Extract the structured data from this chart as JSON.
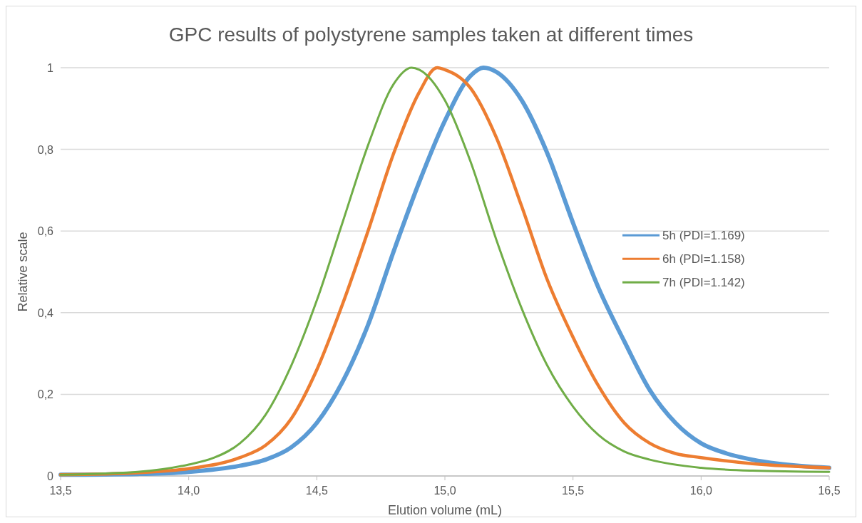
{
  "chart_data": {
    "type": "line",
    "title": "GPC results of polystyrene samples taken at different times",
    "xlabel": "Elution volume (mL)",
    "ylabel": "Relative scale",
    "xlim": [
      13.5,
      16.5
    ],
    "xticks": [
      {
        "value": 13.5,
        "label": "13,5"
      },
      {
        "value": 14,
        "label": "14,0"
      },
      {
        "value": 14.5,
        "label": "14,5"
      },
      {
        "value": 15,
        "label": "15,0"
      },
      {
        "value": 15.5,
        "label": "15,5"
      },
      {
        "value": 16,
        "label": "16,0"
      },
      {
        "value": 16.5,
        "label": "16,5"
      }
    ],
    "ylim": [
      0,
      1
    ],
    "yticks": [
      0,
      {
        "value": 0.2,
        "label": "0,2"
      },
      {
        "value": 0.4,
        "label": "0,4"
      },
      {
        "value": 0.6,
        "label": "0,6"
      },
      {
        "value": 0.8,
        "label": "0,8"
      },
      1
    ],
    "grid": "y",
    "legend": "right",
    "marker": "none",
    "line_style": "solid",
    "series": [
      {
        "name": "5h (PDI=1.169)",
        "color": "#5b9bd5",
        "x": [
          13.5,
          13.8,
          14.0,
          14.2,
          14.3,
          14.4,
          14.5,
          14.6,
          14.7,
          14.8,
          14.9,
          15.0,
          15.1,
          15.15,
          15.2,
          15.3,
          15.4,
          15.5,
          15.6,
          15.7,
          15.8,
          15.9,
          16.0,
          16.1,
          16.2,
          16.3,
          16.5
        ],
        "values": [
          0.003,
          0.005,
          0.01,
          0.025,
          0.04,
          0.07,
          0.13,
          0.23,
          0.37,
          0.55,
          0.72,
          0.87,
          0.98,
          1.0,
          0.99,
          0.92,
          0.79,
          0.62,
          0.46,
          0.33,
          0.21,
          0.13,
          0.08,
          0.055,
          0.04,
          0.03,
          0.02
        ]
      },
      {
        "name": "6h (PDI=1.158)",
        "color": "#ed7d31",
        "x": [
          13.5,
          13.8,
          14.0,
          14.2,
          14.3,
          14.4,
          14.5,
          14.6,
          14.7,
          14.8,
          14.9,
          14.97,
          15.0,
          15.1,
          15.2,
          15.3,
          15.4,
          15.5,
          15.6,
          15.7,
          15.8,
          15.9,
          16.0,
          16.2,
          16.5
        ],
        "values": [
          0.003,
          0.008,
          0.018,
          0.045,
          0.075,
          0.14,
          0.26,
          0.42,
          0.6,
          0.79,
          0.94,
          1.0,
          0.995,
          0.95,
          0.83,
          0.66,
          0.48,
          0.34,
          0.22,
          0.13,
          0.08,
          0.055,
          0.045,
          0.03,
          0.02
        ]
      },
      {
        "name": "7h (PDI=1.142)",
        "color": "#70ad47",
        "x": [
          13.5,
          13.8,
          14.0,
          14.1,
          14.2,
          14.3,
          14.4,
          14.5,
          14.6,
          14.7,
          14.8,
          14.87,
          14.9,
          15.0,
          15.1,
          15.2,
          15.3,
          15.4,
          15.5,
          15.6,
          15.7,
          15.8,
          16.0,
          16.2,
          16.5
        ],
        "values": [
          0.003,
          0.01,
          0.028,
          0.045,
          0.08,
          0.15,
          0.27,
          0.43,
          0.62,
          0.81,
          0.96,
          1.0,
          0.995,
          0.92,
          0.77,
          0.58,
          0.41,
          0.27,
          0.17,
          0.1,
          0.06,
          0.04,
          0.02,
          0.013,
          0.01
        ]
      }
    ]
  }
}
